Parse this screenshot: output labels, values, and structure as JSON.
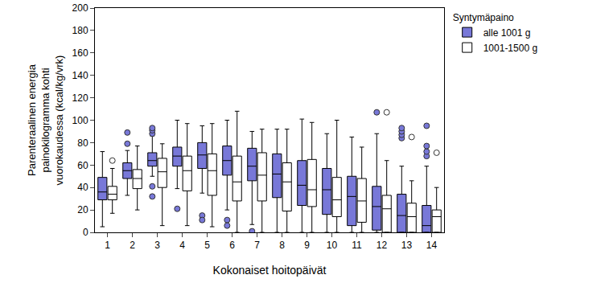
{
  "chart_data": {
    "type": "box",
    "x_label": "Kokonaiset hoitopäivät",
    "y_label": "Parenteraalinen energia\npainokilogramma kohti\nvuorokaudessa (kcal/kg/vrk)",
    "legend_title": "Syntymäpaino",
    "legend": "right",
    "grid": false,
    "x": [
      1,
      2,
      3,
      4,
      5,
      6,
      7,
      8,
      9,
      10,
      11,
      12,
      13,
      14
    ],
    "xlim": [
      0.5,
      14.5
    ],
    "xticks": [
      1,
      2,
      3,
      4,
      5,
      6,
      7,
      8,
      9,
      10,
      11,
      12,
      13,
      14
    ],
    "ylim": [
      0,
      200
    ],
    "yticks": [
      0,
      20,
      40,
      60,
      80,
      100,
      120,
      140,
      160,
      180,
      200
    ],
    "series": [
      {
        "name": "alle 1001 g",
        "color": "#7878d8",
        "lowerfence": [
          5,
          33,
          50,
          39,
          35,
          20,
          7,
          0,
          0,
          0,
          0,
          0,
          0,
          0
        ],
        "q1": [
          29,
          48,
          59,
          59,
          57,
          51,
          46,
          31,
          24,
          16,
          6,
          2,
          0,
          0
        ],
        "median": [
          36,
          55,
          64,
          68,
          69,
          64,
          59,
          52,
          42,
          38,
          32,
          23,
          15,
          6
        ],
        "q3": [
          49,
          62,
          71,
          76,
          80,
          77,
          75,
          70,
          64,
          57,
          50,
          41,
          34,
          24
        ],
        "upperfence": [
          72,
          73,
          86,
          100,
          95,
          100,
          90,
          92,
          101,
          88,
          85,
          88,
          59,
          59
        ],
        "outliers": [
          [],
          [
            79,
            89
          ],
          [
            88,
            91,
            93,
            41,
            32
          ],
          [
            21
          ],
          [
            15,
            11
          ],
          [
            11,
            6
          ],
          [
            1
          ],
          [],
          [],
          [],
          [],
          [
            107
          ],
          [
            84,
            87,
            90,
            93
          ],
          [
            68,
            72,
            77,
            95
          ]
        ]
      },
      {
        "name": "1001-1500 g",
        "color": "#ffffff",
        "lowerfence": [
          17,
          20,
          6,
          6,
          5,
          0,
          0,
          0,
          0,
          0,
          0,
          0,
          0,
          0
        ],
        "q1": [
          29,
          39,
          40,
          37,
          33,
          28,
          28,
          19,
          23,
          14,
          9,
          0,
          0,
          0
        ],
        "median": [
          34,
          48,
          54,
          55,
          55,
          45,
          51,
          45,
          38,
          29,
          28,
          21,
          14,
          14
        ],
        "q3": [
          41,
          56,
          66,
          68,
          70,
          68,
          71,
          62,
          65,
          49,
          48,
          33,
          26,
          20
        ],
        "upperfence": [
          57,
          77,
          79,
          97,
          97,
          108,
          92,
          92,
          98,
          100,
          76,
          64,
          46,
          40
        ],
        "outliers": [
          [
            64
          ],
          [],
          [],
          [],
          [],
          [],
          [],
          [],
          [],
          [],
          [],
          [
            107
          ],
          [
            85
          ],
          [
            71
          ]
        ]
      }
    ]
  }
}
